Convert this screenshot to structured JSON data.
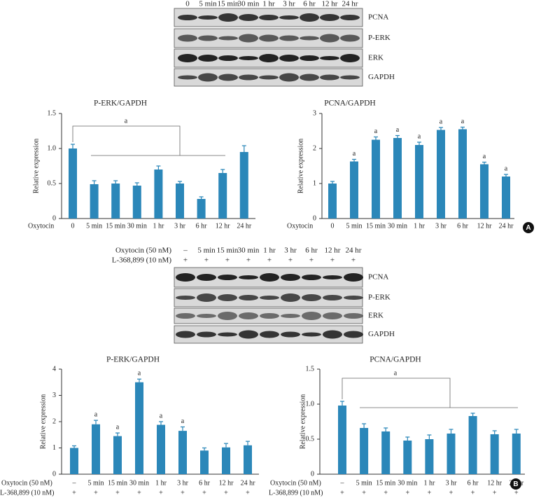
{
  "blots": [
    {
      "lanes": [
        "0",
        "5 min",
        "15 min",
        "30 min",
        "1 hr",
        "3 hr",
        "6 hr",
        "12 hr",
        "24 hr"
      ],
      "rows": [
        "PCNA",
        "P-ERK",
        "ERK",
        "GAPDH"
      ]
    },
    {
      "conditions": [
        {
          "label": "Oxytocin (50 nM)",
          "lanes": [
            "–",
            "5 min",
            "15 min",
            "30 min",
            "1 hr",
            "3 hr",
            "6 hr",
            "12 hr",
            "24 hr"
          ]
        },
        {
          "label": "L-368,899 (10 nM)",
          "lanes": [
            "+",
            "+",
            "+",
            "+",
            "+",
            "+",
            "+",
            "+",
            "+"
          ]
        }
      ],
      "rows": [
        "PCNA",
        "P-ERK",
        "ERK",
        "GAPDH"
      ]
    }
  ],
  "panel_labels": [
    "A",
    "B"
  ],
  "chart_data": [
    {
      "type": "bar",
      "title": "P-ERK/GAPDH",
      "y_label": "Relative expression",
      "x_label": "Oxytocin",
      "categories": [
        "0",
        "5 min",
        "15 min",
        "30 min",
        "1 hr",
        "3 hr",
        "6 hr",
        "12 hr",
        "24 hr"
      ],
      "values": [
        1.0,
        0.49,
        0.5,
        0.47,
        0.7,
        0.5,
        0.28,
        0.65,
        0.95
      ],
      "errors": [
        0.06,
        0.05,
        0.04,
        0.04,
        0.05,
        0.03,
        0.03,
        0.05,
        0.09
      ],
      "bracket_label": "a",
      "color": "#2b87b9",
      "ylim": [
        0,
        1.5
      ],
      "yticks": [
        0,
        0.5,
        {
          "value": 1,
          "label": "1.0"
        },
        1.5
      ]
    },
    {
      "type": "bar",
      "title": "PCNA/GAPDH",
      "y_label": "Relative expression",
      "x_label": "Oxytocin",
      "categories": [
        "0",
        "5 min",
        "15 min",
        "30 min",
        "1 hr",
        "3 hr",
        "6 hr",
        "12 hr",
        "24 hr"
      ],
      "values": [
        1.0,
        1.63,
        2.25,
        2.3,
        2.1,
        2.53,
        2.55,
        1.55,
        1.2
      ],
      "errors": [
        0.06,
        0.06,
        0.08,
        0.07,
        0.08,
        0.07,
        0.06,
        0.06,
        0.06
      ],
      "markers": [
        null,
        "a",
        "a",
        "a",
        "a",
        "a",
        "a",
        "a",
        "a"
      ],
      "color": "#2b87b9",
      "ylim": [
        0,
        3
      ],
      "yticks": [
        0,
        1,
        2,
        3
      ]
    },
    {
      "type": "bar",
      "title": "P-ERK/GAPDH",
      "y_label": "Relative expression",
      "x_label": "Oxytocin (50 nM)",
      "categories": [
        "–",
        "5 min",
        "15 min",
        "30 min",
        "1 hr",
        "3 hr",
        "6 hr",
        "12 hr",
        "24 hr"
      ],
      "x_label2": "L-368,899 (10 nM)",
      "categories2": [
        "+",
        "+",
        "+",
        "+",
        "+",
        "+",
        "+",
        "+",
        "+"
      ],
      "values": [
        1.0,
        1.9,
        1.45,
        3.5,
        1.88,
        1.65,
        0.9,
        1.02,
        1.1
      ],
      "errors": [
        0.08,
        0.15,
        0.12,
        0.12,
        0.12,
        0.15,
        0.1,
        0.15,
        0.15
      ],
      "markers": [
        null,
        "a",
        "a",
        "a",
        "a",
        "a",
        null,
        null,
        null
      ],
      "color": "#2b87b9",
      "ylim": [
        0,
        4
      ],
      "yticks": [
        0,
        1,
        2,
        3,
        4
      ]
    },
    {
      "type": "bar",
      "title": "PCNA/GAPDH",
      "y_label": "Relative expression",
      "x_label": "Oxytocin (50 nM)",
      "categories": [
        "–",
        "5 min",
        "15 min",
        "30 min",
        "1 hr",
        "3 hr",
        "6 hr",
        "12 hr",
        "24 hr"
      ],
      "x_label2": "L-368,899 (10 nM)",
      "categories2": [
        "+",
        "+",
        "+",
        "+",
        "+",
        "+",
        "+",
        "+",
        "+"
      ],
      "values": [
        0.98,
        0.66,
        0.61,
        0.48,
        0.5,
        0.58,
        0.83,
        0.57,
        0.58
      ],
      "errors": [
        0.06,
        0.06,
        0.05,
        0.05,
        0.06,
        0.06,
        0.04,
        0.05,
        0.06
      ],
      "bracket_label": "a",
      "color": "#2b87b9",
      "ylim": [
        0,
        1.5
      ],
      "yticks": [
        0,
        0.5,
        {
          "value": 1,
          "label": "1.0"
        },
        1.5
      ]
    }
  ]
}
